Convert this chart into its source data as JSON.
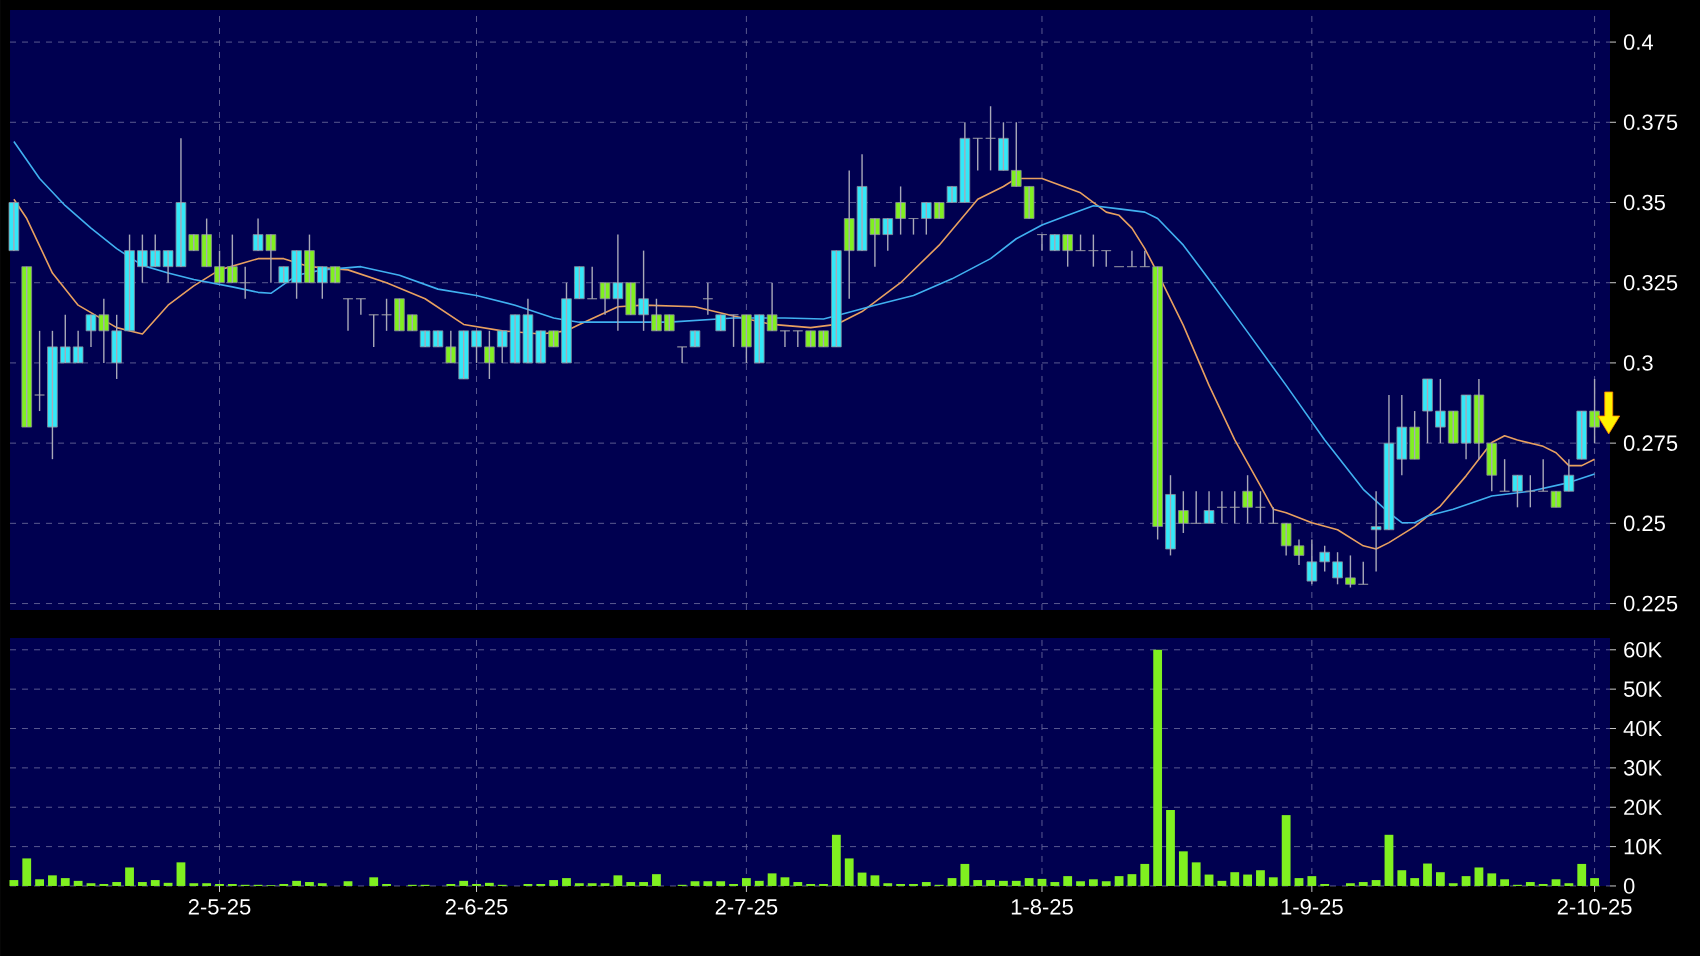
{
  "chart_data": [
    {
      "type": "candlestick",
      "grid": true,
      "tick_labels": "y",
      "categories": [
        null,
        null,
        null,
        null,
        null,
        null,
        null,
        null,
        null,
        null,
        null,
        null,
        null,
        null,
        null,
        null,
        null,
        null,
        null,
        null,
        null,
        null,
        null,
        null,
        null,
        null,
        null,
        null,
        null,
        null,
        null,
        null,
        null,
        null,
        null,
        null,
        null,
        null,
        null,
        null,
        null,
        null,
        null,
        null,
        null,
        null,
        null,
        null,
        null,
        null,
        null,
        null,
        null,
        null,
        null,
        null,
        null,
        null,
        null,
        null,
        null,
        null,
        null,
        null,
        null,
        null,
        null,
        null,
        null,
        null,
        null,
        null,
        null,
        null,
        null,
        null,
        null,
        null,
        null,
        null,
        null,
        null,
        null,
        null,
        null,
        null,
        null,
        null,
        null,
        null,
        null,
        null,
        null,
        null,
        null,
        null,
        null,
        null,
        null,
        null,
        null,
        null,
        null,
        null,
        null,
        null,
        null,
        null,
        null,
        null,
        null,
        null,
        null,
        null,
        null,
        null,
        null,
        null,
        null,
        null,
        null,
        null,
        null,
        null
      ],
      "ylim": [
        0.223,
        0.41
      ],
      "yticks": [
        0.225,
        0.25,
        0.275,
        0.3,
        0.325,
        0.35,
        0.375,
        0.4
      ],
      "ohlc": [
        [
          0.335,
          0.35,
          0.335,
          0.35
        ],
        [
          0.33,
          0.33,
          0.28,
          0.28
        ],
        [
          0.29,
          0.31,
          0.285,
          0.29
        ],
        [
          0.28,
          0.31,
          0.27,
          0.305
        ],
        [
          0.3,
          0.315,
          0.3,
          0.305
        ],
        [
          0.3,
          0.31,
          0.3,
          0.305
        ],
        [
          0.31,
          0.315,
          0.305,
          0.315
        ],
        [
          0.315,
          0.32,
          0.3,
          0.31
        ],
        [
          0.3,
          0.315,
          0.295,
          0.31
        ],
        [
          0.31,
          0.34,
          0.31,
          0.335
        ],
        [
          0.33,
          0.34,
          0.325,
          0.335
        ],
        [
          0.33,
          0.34,
          0.33,
          0.335
        ],
        [
          0.33,
          0.335,
          0.325,
          0.335
        ],
        [
          0.33,
          0.37,
          0.33,
          0.35
        ],
        [
          0.34,
          0.34,
          0.335,
          0.335
        ],
        [
          0.34,
          0.345,
          0.33,
          0.33
        ],
        [
          0.33,
          0.335,
          0.325,
          0.325
        ],
        [
          0.33,
          0.34,
          0.325,
          0.325
        ],
        [
          0.325,
          0.33,
          0.32,
          0.325
        ],
        [
          0.335,
          0.345,
          0.335,
          0.34
        ],
        [
          0.34,
          0.34,
          0.325,
          0.335
        ],
        [
          0.325,
          0.33,
          0.325,
          0.33
        ],
        [
          0.325,
          0.335,
          0.32,
          0.335
        ],
        [
          0.335,
          0.34,
          0.325,
          0.325
        ],
        [
          0.325,
          0.33,
          0.32,
          0.33
        ],
        [
          0.33,
          0.33,
          0.325,
          0.325
        ],
        [
          0.32,
          0.32,
          0.31,
          0.32
        ],
        [
          0.32,
          0.32,
          0.315,
          0.32
        ],
        [
          0.315,
          0.315,
          0.305,
          0.315
        ],
        [
          0.315,
          0.32,
          0.31,
          0.315
        ],
        [
          0.32,
          0.32,
          0.31,
          0.31
        ],
        [
          0.315,
          0.315,
          0.31,
          0.31
        ],
        [
          0.305,
          0.31,
          0.305,
          0.31
        ],
        [
          0.305,
          0.31,
          0.305,
          0.31
        ],
        [
          0.305,
          0.31,
          0.3,
          0.3
        ],
        [
          0.295,
          0.31,
          0.295,
          0.31
        ],
        [
          0.305,
          0.31,
          0.3,
          0.31
        ],
        [
          0.305,
          0.31,
          0.295,
          0.3
        ],
        [
          0.305,
          0.31,
          0.3,
          0.31
        ],
        [
          0.3,
          0.315,
          0.3,
          0.315
        ],
        [
          0.3,
          0.32,
          0.3,
          0.315
        ],
        [
          0.3,
          0.31,
          0.3,
          0.31
        ],
        [
          0.31,
          0.31,
          0.305,
          0.305
        ],
        [
          0.3,
          0.325,
          0.3,
          0.32
        ],
        [
          0.32,
          0.33,
          0.32,
          0.33
        ],
        [
          0.32,
          0.33,
          0.32,
          0.32
        ],
        [
          0.325,
          0.325,
          0.315,
          0.32
        ],
        [
          0.32,
          0.34,
          0.31,
          0.325
        ],
        [
          0.325,
          0.325,
          0.315,
          0.315
        ],
        [
          0.315,
          0.335,
          0.31,
          0.32
        ],
        [
          0.315,
          0.32,
          0.31,
          0.31
        ],
        [
          0.315,
          0.315,
          0.31,
          0.31
        ],
        [
          0.305,
          0.305,
          0.3,
          0.305
        ],
        [
          0.305,
          0.31,
          0.305,
          0.31
        ],
        [
          0.32,
          0.325,
          0.315,
          0.32
        ],
        [
          0.31,
          0.315,
          0.31,
          0.315
        ],
        [
          0.315,
          0.315,
          0.305,
          0.315
        ],
        [
          0.315,
          0.315,
          0.3,
          0.305
        ],
        [
          0.3,
          0.315,
          0.3,
          0.315
        ],
        [
          0.315,
          0.325,
          0.31,
          0.31
        ],
        [
          0.31,
          0.31,
          0.305,
          0.31
        ],
        [
          0.31,
          0.31,
          0.305,
          0.31
        ],
        [
          0.31,
          0.31,
          0.305,
          0.305
        ],
        [
          0.31,
          0.31,
          0.305,
          0.305
        ],
        [
          0.305,
          0.335,
          0.305,
          0.335
        ],
        [
          0.345,
          0.36,
          0.32,
          0.335
        ],
        [
          0.335,
          0.365,
          0.335,
          0.355
        ],
        [
          0.345,
          0.345,
          0.33,
          0.34
        ],
        [
          0.34,
          0.345,
          0.335,
          0.345
        ],
        [
          0.35,
          0.355,
          0.34,
          0.345
        ],
        [
          0.345,
          0.345,
          0.34,
          0.345
        ],
        [
          0.345,
          0.35,
          0.34,
          0.35
        ],
        [
          0.35,
          0.35,
          0.345,
          0.345
        ],
        [
          0.35,
          0.355,
          0.35,
          0.355
        ],
        [
          0.35,
          0.375,
          0.35,
          0.37
        ],
        [
          0.37,
          0.37,
          0.36,
          0.37
        ],
        [
          0.37,
          0.38,
          0.36,
          0.37
        ],
        [
          0.36,
          0.375,
          0.36,
          0.37
        ],
        [
          0.36,
          0.375,
          0.355,
          0.355
        ],
        [
          0.355,
          0.355,
          0.345,
          0.345
        ],
        [
          0.34,
          0.34,
          0.335,
          0.34
        ],
        [
          0.335,
          0.34,
          0.335,
          0.34
        ],
        [
          0.34,
          0.34,
          0.33,
          0.335
        ],
        [
          0.335,
          0.34,
          0.335,
          0.335
        ],
        [
          0.335,
          0.34,
          0.33,
          0.335
        ],
        [
          0.335,
          0.335,
          0.33,
          0.335
        ],
        [
          0.33,
          0.33,
          0.33,
          0.33
        ],
        [
          0.33,
          0.335,
          0.33,
          0.33
        ],
        [
          0.33,
          0.335,
          0.33,
          0.33
        ],
        [
          0.33,
          0.33,
          0.245,
          0.249
        ],
        [
          0.242,
          0.265,
          0.24,
          0.259
        ],
        [
          0.254,
          0.26,
          0.247,
          0.25
        ],
        [
          0.25,
          0.26,
          0.25,
          0.25
        ],
        [
          0.25,
          0.26,
          0.25,
          0.254
        ],
        [
          0.255,
          0.26,
          0.25,
          0.255
        ],
        [
          0.255,
          0.26,
          0.25,
          0.255
        ],
        [
          0.26,
          0.265,
          0.25,
          0.255
        ],
        [
          0.255,
          0.26,
          0.25,
          0.255
        ],
        [
          0.25,
          0.255,
          0.25,
          0.25
        ],
        [
          0.25,
          0.25,
          0.24,
          0.243
        ],
        [
          0.243,
          0.245,
          0.237,
          0.24
        ],
        [
          0.232,
          0.245,
          0.231,
          0.238
        ],
        [
          0.238,
          0.243,
          0.235,
          0.241
        ],
        [
          0.233,
          0.241,
          0.231,
          0.238
        ],
        [
          0.233,
          0.24,
          0.23,
          0.231
        ],
        [
          0.231,
          0.238,
          0.231,
          0.231
        ],
        [
          0.248,
          0.26,
          0.235,
          0.249
        ],
        [
          0.248,
          0.29,
          0.248,
          0.275
        ],
        [
          0.27,
          0.29,
          0.265,
          0.28
        ],
        [
          0.28,
          0.285,
          0.27,
          0.27
        ],
        [
          0.285,
          0.295,
          0.275,
          0.295
        ],
        [
          0.28,
          0.295,
          0.275,
          0.285
        ],
        [
          0.285,
          0.285,
          0.275,
          0.275
        ],
        [
          0.275,
          0.29,
          0.27,
          0.29
        ],
        [
          0.29,
          0.295,
          0.27,
          0.275
        ],
        [
          0.275,
          0.275,
          0.26,
          0.265
        ],
        [
          0.26,
          0.27,
          0.26,
          0.26
        ],
        [
          0.26,
          0.265,
          0.255,
          0.265
        ],
        [
          0.26,
          0.265,
          0.255,
          0.26
        ],
        [
          0.26,
          0.27,
          0.26,
          0.26
        ],
        [
          0.26,
          0.26,
          0.255,
          0.255
        ],
        [
          0.26,
          0.27,
          0.26,
          0.265
        ],
        [
          0.27,
          0.285,
          0.27,
          0.285
        ],
        [
          0.285,
          0.295,
          0.275,
          0.28
        ]
      ],
      "series": [
        {
          "type": "line",
          "color": "#e8a060",
          "values": [
            0.351,
            0.345,
            null,
            0.328,
            null,
            0.318,
            null,
            null,
            0.311,
            null,
            0.309,
            null,
            0.318,
            null,
            0.324,
            null,
            0.329,
            null,
            null,
            0.3325,
            null,
            0.3325,
            null,
            0.33,
            null,
            null,
            0.329,
            null,
            null,
            0.325,
            null,
            null,
            0.32,
            null,
            null,
            0.312,
            null,
            null,
            0.31,
            null,
            null,
            0.309,
            null,
            0.31,
            0.312,
            null,
            null,
            0.3175,
            null,
            0.318,
            null,
            null,
            null,
            0.3175,
            null,
            null,
            0.3146,
            null,
            null,
            0.312,
            null,
            null,
            0.311,
            null,
            0.312,
            null,
            0.316,
            null,
            null,
            0.325,
            null,
            null,
            0.3367,
            null,
            null,
            0.351,
            null,
            0.355,
            0.3575,
            null,
            0.3575,
            null,
            null,
            0.353,
            null,
            0.347,
            0.346,
            0.342,
            0.3356,
            0.328,
            null,
            0.3117,
            null,
            0.293,
            null,
            0.276,
            null,
            0.2617,
            0.2544,
            0.2533,
            null,
            0.2502,
            null,
            0.248,
            null,
            0.243,
            0.242,
            0.244,
            null,
            0.249,
            null,
            0.2554,
            null,
            0.2648,
            null,
            0.2752,
            0.2773,
            0.276,
            null,
            0.274,
            0.272,
            0.268,
            0.268,
            0.27
          ]
        },
        {
          "type": "line",
          "color": "#40b0f0",
          "values": [
            0.369,
            null,
            0.3575,
            null,
            0.349,
            null,
            0.342,
            null,
            0.3356,
            null,
            0.3304,
            null,
            0.328,
            null,
            0.326,
            null,
            null,
            0.3237,
            null,
            0.322,
            0.3217,
            null,
            0.3273,
            null,
            0.329,
            null,
            null,
            0.33,
            null,
            null,
            0.3273,
            null,
            null,
            0.323,
            null,
            null,
            0.321,
            null,
            null,
            0.318,
            null,
            null,
            0.314,
            0.3133,
            0.3127,
            null,
            null,
            0.3127,
            null,
            null,
            null,
            0.3127,
            null,
            null,
            null,
            null,
            0.314,
            null,
            null,
            null,
            0.314,
            null,
            null,
            0.3137,
            null,
            0.3158,
            null,
            0.318,
            null,
            null,
            0.321,
            null,
            null,
            0.3262,
            null,
            null,
            0.3325,
            null,
            0.3387,
            null,
            0.343,
            null,
            0.346,
            null,
            0.349,
            null,
            0.348,
            null,
            0.347,
            0.345,
            null,
            0.3367,
            null,
            0.326,
            null,
            null,
            0.3096,
            null,
            null,
            0.293,
            null,
            null,
            0.276,
            null,
            null,
            0.2606,
            null,
            0.2533,
            0.2502,
            0.2502,
            0.2523,
            null,
            0.2544,
            null,
            null,
            0.2585,
            null,
            null,
            0.26,
            null,
            null,
            0.2627,
            null,
            0.2654
          ]
        }
      ]
    },
    {
      "type": "bar",
      "grid": true,
      "color": "#80f020",
      "categories": [
        null,
        null,
        null,
        null,
        null,
        null,
        null,
        null,
        null,
        null,
        null,
        null,
        null,
        null,
        null,
        null,
        "2-5-25",
        null,
        null,
        null,
        null,
        null,
        null,
        null,
        null,
        null,
        null,
        null,
        null,
        null,
        null,
        null,
        null,
        null,
        null,
        null,
        "2-6-25",
        null,
        null,
        null,
        null,
        null,
        null,
        null,
        null,
        null,
        null,
        null,
        null,
        null,
        null,
        null,
        null,
        null,
        null,
        null,
        null,
        "2-7-25",
        null,
        null,
        null,
        null,
        null,
        null,
        null,
        null,
        null,
        null,
        null,
        null,
        null,
        null,
        null,
        null,
        null,
        null,
        null,
        null,
        null,
        null,
        "1-8-25",
        null,
        null,
        null,
        null,
        null,
        null,
        null,
        null,
        null,
        null,
        null,
        null,
        null,
        null,
        null,
        null,
        null,
        null,
        null,
        null,
        "1-9-25",
        null,
        null,
        null,
        null,
        null,
        null,
        null,
        null,
        null,
        null,
        null,
        null,
        null,
        null,
        null,
        null,
        null,
        null,
        null,
        null,
        null,
        "2-10-25"
      ],
      "ylim": [
        0,
        63000
      ],
      "yticks": [
        0,
        {
          "value": 10000,
          "label": "10K"
        },
        {
          "value": 20000,
          "label": "20K"
        },
        {
          "value": 30000,
          "label": "30K"
        },
        {
          "value": 40000,
          "label": "40K"
        },
        {
          "value": 50000,
          "label": "50K"
        },
        {
          "value": 60000,
          "label": "60K"
        }
      ],
      "values": [
        1500,
        7000,
        1700,
        2700,
        2000,
        1300,
        700,
        500,
        1000,
        4700,
        1000,
        1500,
        800,
        6000,
        700,
        700,
        500,
        500,
        300,
        300,
        200,
        500,
        1300,
        1000,
        700,
        0,
        1200,
        0,
        2200,
        500,
        0,
        300,
        300,
        0,
        500,
        1300,
        500,
        800,
        300,
        0,
        500,
        500,
        1500,
        2000,
        700,
        700,
        700,
        2700,
        1000,
        1000,
        3000,
        0,
        300,
        1200,
        1200,
        1200,
        500,
        2000,
        1300,
        3200,
        2200,
        1000,
        500,
        500,
        13000,
        7000,
        3400,
        2700,
        700,
        500,
        500,
        1000,
        300,
        2000,
        5600,
        1500,
        1500,
        1300,
        1300,
        2000,
        1800,
        1000,
        2500,
        1200,
        1700,
        1200,
        2500,
        3000,
        5600,
        60000,
        19300,
        8800,
        6000,
        2900,
        1300,
        3500,
        2900,
        4000,
        2200,
        18000,
        2000,
        2500,
        500,
        0,
        700,
        1000,
        1500,
        13000,
        4000,
        2000,
        5700,
        3500,
        700,
        2500,
        4700,
        3200,
        1700,
        300,
        1000,
        500,
        1700,
        700,
        5600,
        2000
      ]
    }
  ]
}
